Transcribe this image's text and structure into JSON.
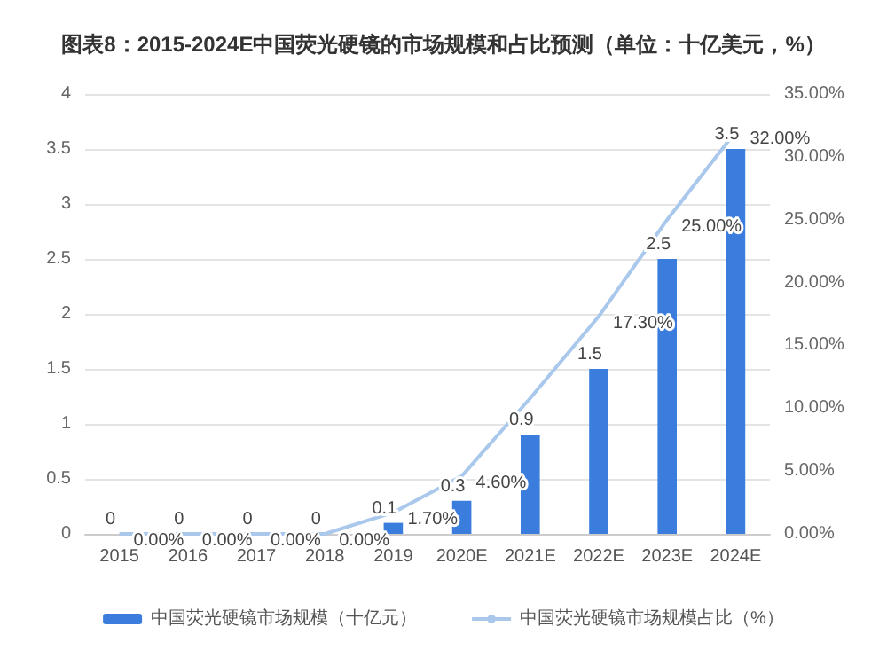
{
  "chart_data": {
    "type": "bar",
    "title": "图表8：2015-2024E中国荧光硬镜的市场规模和占比预测（单位：十亿美元，%）",
    "categories": [
      "2015",
      "2016",
      "2017",
      "2018",
      "2019",
      "2020E",
      "2021E",
      "2022E",
      "2023E",
      "2024E"
    ],
    "series": [
      {
        "name": "中国荧光硬镜市场规模（十亿元）",
        "color": "#3b7ddd",
        "values": [
          0,
          0,
          0,
          0,
          0.1,
          0.3,
          0.9,
          1.5,
          2.5,
          3.5
        ],
        "value_labels": [
          "0",
          "0",
          "0",
          "0",
          "0.1",
          "0.3",
          "0.9",
          "1.5",
          "2.5",
          "3.5"
        ]
      },
      {
        "name": "中国荧光硬镜市场规模占比（%）",
        "type": "line",
        "axis": "y2",
        "color": "#a9c8ec",
        "values": [
          0,
          0,
          0,
          0,
          1.7,
          4.6,
          10.8,
          17.3,
          25,
          32
        ],
        "value_labels": [
          "0.00%",
          "0.00%",
          "0.00%",
          "0.00%",
          "1.70%",
          "4.60%",
          null,
          "17.30%",
          "25.00%",
          "32.00%"
        ]
      }
    ],
    "ylim": [
      0,
      4
    ],
    "yticks": [
      0,
      0.5,
      1,
      1.5,
      2,
      2.5,
      3,
      3.5,
      4
    ],
    "y2lim": [
      0,
      35
    ],
    "y2ticks": [
      {
        "value": 0,
        "label": "0.00%"
      },
      {
        "value": 5,
        "label": "5.00%"
      },
      {
        "value": 10,
        "label": "10.00%"
      },
      {
        "value": 15,
        "label": "15.00%"
      },
      {
        "value": 20,
        "label": "20.00%"
      },
      {
        "value": 25,
        "label": "25.00%"
      },
      {
        "value": 30,
        "label": "30.00%"
      },
      {
        "value": 35,
        "label": "35.00%"
      }
    ],
    "grid": "y",
    "legend": "bottom",
    "marker": "none",
    "line_style": "solid"
  }
}
